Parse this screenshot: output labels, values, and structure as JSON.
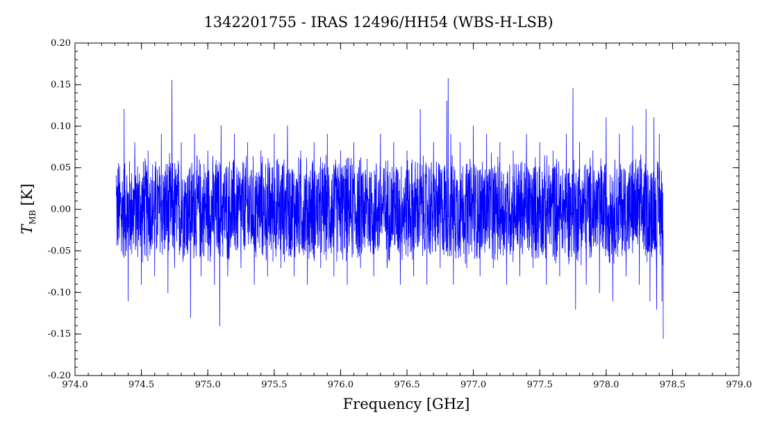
{
  "chart_data": {
    "type": "line",
    "title": "1342201755 - IRAS 12496/HH54 (WBS-H-LSB)",
    "xlabel": "Frequency [GHz]",
    "ylabel_main": "T",
    "ylabel_sub": "MB",
    "ylabel_unit": "[K]",
    "xlim": [
      974.0,
      979.0
    ],
    "ylim": [
      -0.2,
      0.2
    ],
    "x_ticks": [
      974.0,
      974.5,
      975.0,
      975.5,
      976.0,
      976.5,
      977.0,
      977.5,
      978.0,
      978.5,
      979.0
    ],
    "x_tick_labels": [
      "974.0",
      "974.5",
      "975.0",
      "975.5",
      "976.0",
      "976.5",
      "977.0",
      "977.5",
      "978.0",
      "978.5",
      "979.0"
    ],
    "y_ticks": [
      -0.2,
      -0.15,
      -0.1,
      -0.05,
      0.0,
      0.05,
      0.1,
      0.15,
      0.2
    ],
    "y_tick_labels": [
      "-0.20",
      "-0.15",
      "-0.10",
      "-0.05",
      "0.00",
      "0.05",
      "0.10",
      "0.15",
      "0.20"
    ],
    "grid": false,
    "legend": "none",
    "colors": {
      "series": "#0000ff",
      "axes": "#000000",
      "background": "#ffffff"
    },
    "series": [
      {
        "color": "#0000ff",
        "x": [
          974.31,
          974.35,
          974.37,
          974.4,
          974.45,
          974.5,
          974.55,
          974.6,
          974.65,
          974.7,
          974.73,
          974.75,
          974.8,
          974.87,
          974.9,
          974.95,
          975.0,
          975.05,
          975.09,
          975.1,
          975.15,
          975.2,
          975.25,
          975.3,
          975.35,
          975.4,
          975.45,
          975.5,
          975.55,
          975.6,
          975.65,
          975.7,
          975.75,
          975.8,
          975.85,
          975.9,
          975.95,
          976.0,
          976.05,
          976.1,
          976.15,
          976.2,
          976.25,
          976.3,
          976.35,
          976.4,
          976.45,
          976.5,
          976.55,
          976.6,
          976.65,
          976.7,
          976.75,
          976.8,
          976.81,
          976.83,
          976.85,
          976.9,
          976.95,
          977.0,
          977.05,
          977.1,
          977.15,
          977.2,
          977.25,
          977.3,
          977.35,
          977.4,
          977.45,
          977.5,
          977.55,
          977.6,
          977.65,
          977.7,
          977.75,
          977.77,
          977.8,
          977.85,
          977.9,
          977.95,
          978.0,
          978.05,
          978.1,
          978.15,
          978.2,
          978.25,
          978.3,
          978.33,
          978.36,
          978.38,
          978.4,
          978.42,
          978.43
        ],
        "y": [
          0.04,
          -0.05,
          0.12,
          -0.11,
          0.08,
          -0.09,
          0.07,
          -0.08,
          0.09,
          -0.1,
          0.155,
          -0.07,
          0.08,
          -0.13,
          0.09,
          -0.08,
          0.07,
          -0.09,
          -0.14,
          0.1,
          -0.08,
          0.09,
          -0.07,
          0.08,
          -0.09,
          0.07,
          -0.08,
          0.09,
          -0.07,
          0.1,
          -0.08,
          0.07,
          -0.09,
          0.08,
          -0.07,
          0.09,
          -0.08,
          0.07,
          -0.09,
          0.08,
          -0.07,
          0.06,
          -0.08,
          0.09,
          -0.07,
          0.08,
          -0.09,
          0.07,
          -0.08,
          0.12,
          -0.09,
          0.08,
          -0.07,
          0.13,
          0.157,
          0.09,
          -0.09,
          0.08,
          -0.07,
          0.1,
          -0.08,
          0.09,
          -0.07,
          0.08,
          -0.09,
          0.07,
          -0.08,
          0.09,
          -0.07,
          0.08,
          -0.09,
          0.07,
          -0.08,
          0.09,
          0.145,
          -0.12,
          0.08,
          -0.09,
          0.07,
          -0.1,
          0.11,
          -0.11,
          0.09,
          -0.08,
          0.1,
          -0.09,
          0.12,
          -0.11,
          0.11,
          -0.12,
          0.09,
          -0.11,
          -0.155
        ]
      }
    ]
  }
}
